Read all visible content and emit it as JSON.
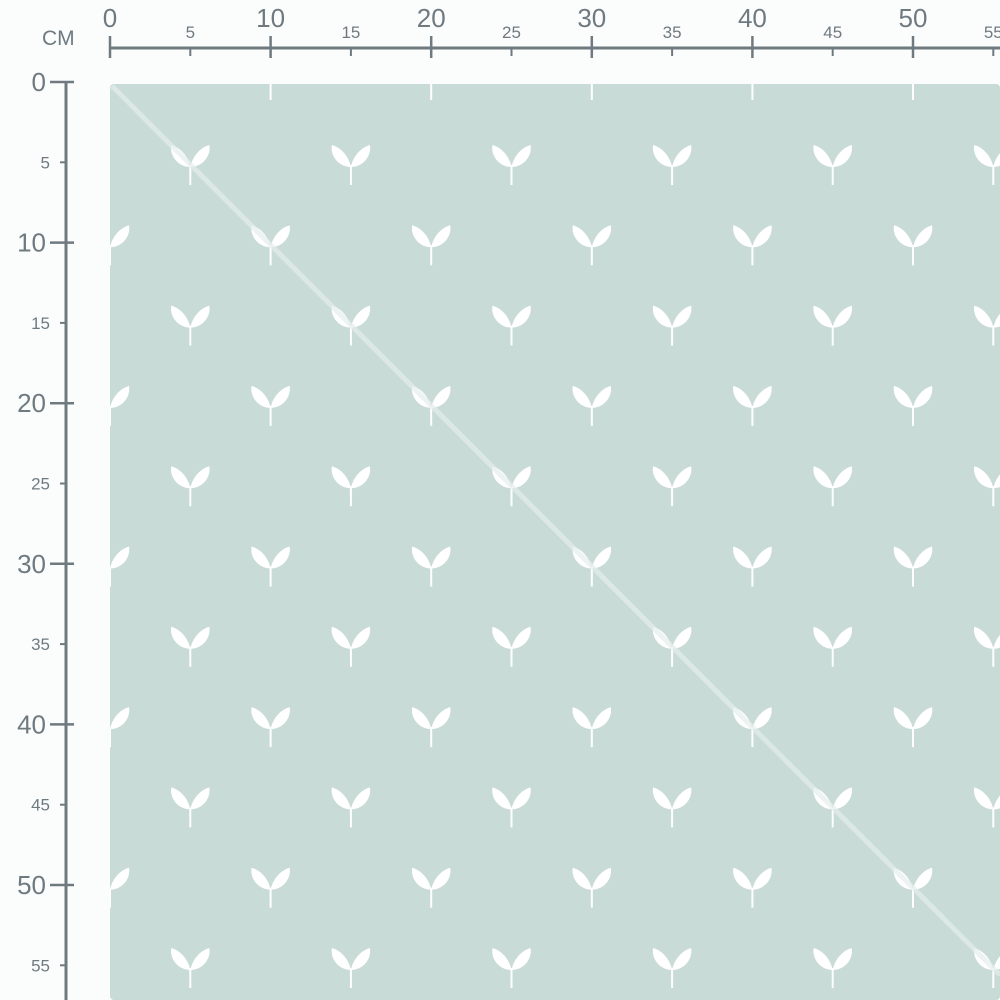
{
  "ruler": {
    "unit": "CM",
    "top_major": [
      "0",
      "10",
      "20",
      "30",
      "40",
      "50"
    ],
    "top_minor": [
      "5",
      "15",
      "25",
      "35",
      "45",
      "55"
    ],
    "left_major": [
      "0",
      "10",
      "20",
      "30",
      "40",
      "50"
    ],
    "left_minor": [
      "5",
      "15",
      "25",
      "35",
      "45",
      "55"
    ],
    "color": "#6f7a80"
  },
  "fabric": {
    "background_color": "#c8dbd7",
    "motif": "sprout",
    "motif_color": "#ffffff",
    "repeat_cm": 10
  }
}
